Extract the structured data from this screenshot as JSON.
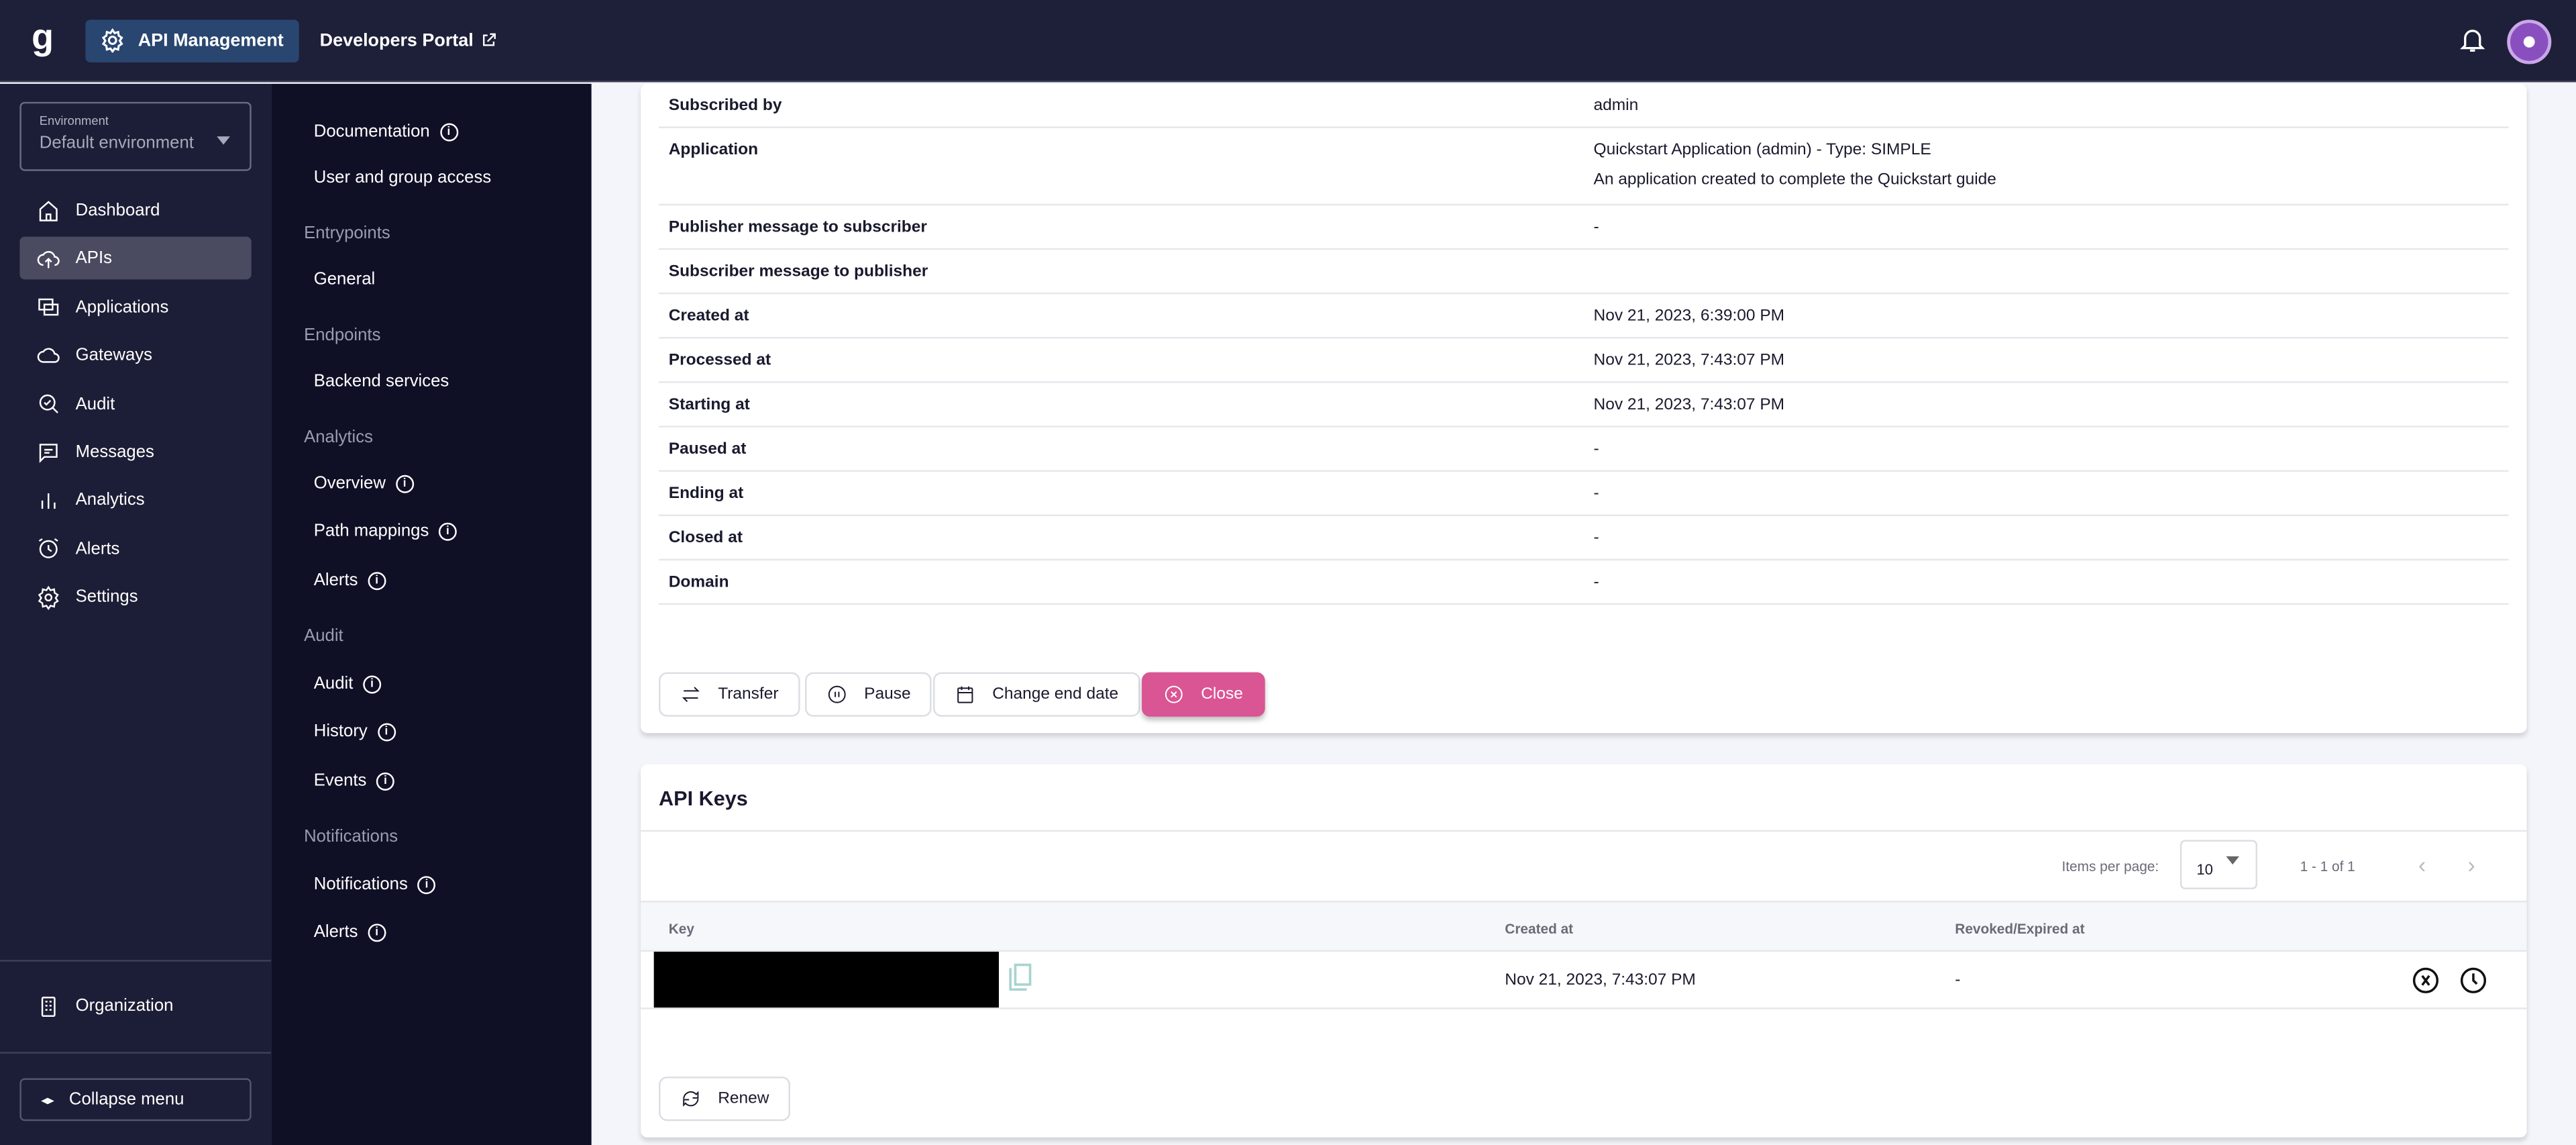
{
  "topbar": {
    "logo": "g",
    "app": "API Management",
    "portal": "Developers Portal"
  },
  "sidebar": {
    "env_label": "Environment",
    "env_value": "Default environment",
    "items": [
      {
        "label": "Dashboard",
        "icon": "home-icon"
      },
      {
        "label": "APIs",
        "icon": "cloud-upload-icon",
        "active": true
      },
      {
        "label": "Applications",
        "icon": "applications-icon"
      },
      {
        "label": "Gateways",
        "icon": "cloud-icon"
      },
      {
        "label": "Audit",
        "icon": "audit-search-icon"
      },
      {
        "label": "Messages",
        "icon": "message-icon"
      },
      {
        "label": "Analytics",
        "icon": "bar-chart-icon"
      },
      {
        "label": "Alerts",
        "icon": "alarm-icon"
      },
      {
        "label": "Settings",
        "icon": "gear-icon"
      }
    ],
    "organization": "Organization",
    "collapse": "Collapse menu"
  },
  "subnav": [
    {
      "type": "item",
      "label": "Documentation",
      "info": true
    },
    {
      "type": "item",
      "label": "User and group access"
    },
    {
      "type": "header",
      "label": "Entrypoints"
    },
    {
      "type": "item",
      "label": "General"
    },
    {
      "type": "header",
      "label": "Endpoints"
    },
    {
      "type": "item",
      "label": "Backend services"
    },
    {
      "type": "header",
      "label": "Analytics"
    },
    {
      "type": "item",
      "label": "Overview",
      "info": true
    },
    {
      "type": "item",
      "label": "Path mappings",
      "info": true
    },
    {
      "type": "item",
      "label": "Alerts",
      "info": true
    },
    {
      "type": "header",
      "label": "Audit"
    },
    {
      "type": "item",
      "label": "Audit",
      "info": true
    },
    {
      "type": "item",
      "label": "History",
      "info": true
    },
    {
      "type": "item",
      "label": "Events",
      "info": true
    },
    {
      "type": "header",
      "label": "Notifications"
    },
    {
      "type": "item",
      "label": "Notifications",
      "info": true
    },
    {
      "type": "item",
      "label": "Alerts",
      "info": true
    }
  ],
  "details": [
    {
      "k": "Subscribed by",
      "v": "admin"
    },
    {
      "k": "Application",
      "v": "Quickstart Application (admin) - Type: SIMPLE",
      "v2": "An application created to complete the Quickstart guide"
    },
    {
      "k": "Publisher message to subscriber",
      "v": "-"
    },
    {
      "k": "Subscriber message to publisher",
      "v": ""
    },
    {
      "k": "Created at",
      "v": "Nov 21, 2023, 6:39:00 PM"
    },
    {
      "k": "Processed at",
      "v": "Nov 21, 2023, 7:43:07 PM"
    },
    {
      "k": "Starting at",
      "v": "Nov 21, 2023, 7:43:07 PM"
    },
    {
      "k": "Paused at",
      "v": "-"
    },
    {
      "k": "Ending at",
      "v": "-"
    },
    {
      "k": "Closed at",
      "v": "-"
    },
    {
      "k": "Domain",
      "v": "-"
    }
  ],
  "actions": {
    "transfer": "Transfer",
    "pause": "Pause",
    "change_end": "Change end date",
    "close": "Close"
  },
  "apikeys": {
    "title": "API Keys",
    "items_per_page_label": "Items per page:",
    "items_per_page": "10",
    "range": "1 - 1 of 1",
    "columns": [
      "Key",
      "Created at",
      "Revoked/Expired at"
    ],
    "rows": [
      {
        "key": "",
        "created": "Nov 21, 2023, 7:43:07 PM",
        "revoked": "-"
      }
    ],
    "renew": "Renew"
  },
  "colors": {
    "accent": "#da5594",
    "topbar": "#1e1f38",
    "sidebar": "#1c1d36",
    "subnav": "#0f0f26"
  }
}
